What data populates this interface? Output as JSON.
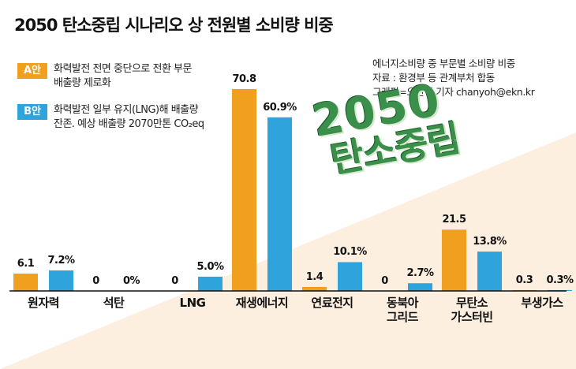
{
  "title": "2050 탄소중립 시나리오 상 전원별 소비량 비중",
  "legend": [
    {
      "badge": "A안",
      "text": "화력발전 전면 중단으로 전환 부문\n배출량 제로화",
      "color": "#f0a01e"
    },
    {
      "badge": "B안",
      "text": "화력발전 일부 유지(LNG)해 배출량\n잔존. 예상 배출량 2070만톤 CO₂eq",
      "color": "#2ea3dc"
    }
  ],
  "source_lines": [
    "에너지소비량 중 부문별 소비량 비중",
    "자료 : 환경부 등 관계부처 합동",
    "그래픽=오찬영 기자 chanyoh@ekn.kr"
  ],
  "watermark": {
    "line1": "2050",
    "line2": "탄소중립"
  },
  "chart_data": {
    "type": "bar",
    "categories": [
      "원자력",
      "석탄",
      "LNG",
      "재생에너지",
      "연료전지",
      "동북아\n그리드",
      "무탄소\n가스터빈",
      "부생가스"
    ],
    "series": [
      {
        "name": "A안",
        "values": [
          6.1,
          0,
          0,
          70.8,
          1.4,
          0,
          21.5,
          0.3
        ],
        "labels": [
          "6.1",
          "0",
          "0",
          "70.8",
          "1.4",
          "0",
          "21.5",
          "0.3"
        ],
        "color": "#f0a01e"
      },
      {
        "name": "B안",
        "values": [
          7.2,
          0,
          5.0,
          60.9,
          10.1,
          2.7,
          13.8,
          0.3
        ],
        "labels": [
          "7.2%",
          "0%",
          "5.0%",
          "60.9%",
          "10.1%",
          "2.7%",
          "13.8%",
          "0.3%"
        ],
        "color": "#2ea3dc"
      }
    ],
    "ylim": [
      0,
      75
    ],
    "title": "2050 탄소중립 시나리오 상 전원별 소비량 비중",
    "xlabel": "",
    "ylabel": "",
    "grid": false
  }
}
